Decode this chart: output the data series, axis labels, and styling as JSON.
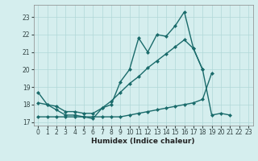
{
  "xlabel": "Humidex (Indice chaleur)",
  "bg_color": "#d5eeee",
  "line_color": "#1a6b6b",
  "x": [
    0,
    1,
    2,
    3,
    4,
    5,
    6,
    7,
    8,
    9,
    10,
    11,
    12,
    13,
    14,
    15,
    16,
    17,
    18,
    19,
    20,
    21,
    22,
    23
  ],
  "line1": [
    18.7,
    18.0,
    17.7,
    17.4,
    17.4,
    17.3,
    17.2,
    17.8,
    18.0,
    19.3,
    20.0,
    21.8,
    21.0,
    22.0,
    21.9,
    22.5,
    23.3,
    21.2,
    20.0,
    17.4,
    17.5,
    17.4,
    null,
    null
  ],
  "line2": [
    18.1,
    18.0,
    17.9,
    17.6,
    17.6,
    17.5,
    17.5,
    17.8,
    18.2,
    18.7,
    19.2,
    19.6,
    20.1,
    20.5,
    20.9,
    21.3,
    21.7,
    21.2,
    20.0,
    null,
    null,
    null,
    null,
    null
  ],
  "line3": [
    17.3,
    17.3,
    17.3,
    17.3,
    17.3,
    17.3,
    17.3,
    17.3,
    17.3,
    17.3,
    17.4,
    17.5,
    17.6,
    17.7,
    17.8,
    17.9,
    18.0,
    18.1,
    18.3,
    19.8,
    null,
    null,
    null,
    null
  ],
  "ylim": [
    16.8,
    23.7
  ],
  "xlim": [
    -0.5,
    23.5
  ],
  "yticks": [
    17,
    18,
    19,
    20,
    21,
    22,
    23
  ],
  "xticks": [
    0,
    1,
    2,
    3,
    4,
    5,
    6,
    7,
    8,
    9,
    10,
    11,
    12,
    13,
    14,
    15,
    16,
    17,
    18,
    19,
    20,
    21,
    22,
    23
  ]
}
